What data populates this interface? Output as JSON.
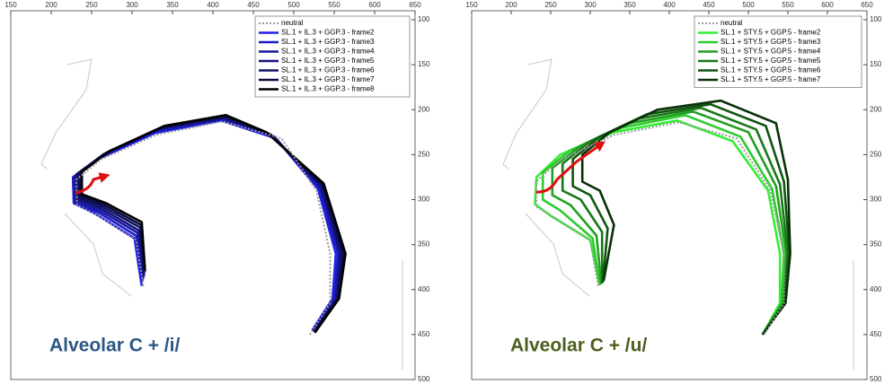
{
  "chart_data": [
    {
      "type": "line",
      "annotation": "Alveolar C + /i/",
      "annotation_color": "#2c5685",
      "xlim": [
        150,
        650
      ],
      "ylim": [
        100,
        500
      ],
      "y_inverted": true,
      "xticks": [
        150,
        200,
        250,
        300,
        350,
        400,
        450,
        500,
        550,
        600,
        650
      ],
      "yticks": [
        100,
        150,
        200,
        250,
        300,
        350,
        400,
        450,
        500
      ],
      "legend": "upper right",
      "series": [
        {
          "name": "neutral",
          "color": "#999999",
          "style": "dotted",
          "x": [
            314,
            305,
            258,
            232,
            231,
            262,
            330,
            412,
            485,
            528,
            545,
            545,
            520
          ],
          "y": [
            396,
            345,
            318,
            306,
            278,
            255,
            228,
            213,
            232,
            290,
            360,
            415,
            450
          ]
        },
        {
          "name": "SL.1 + IL.3 + GGP.3 - frame2",
          "color": "#2020e8",
          "x": [
            312,
            303,
            255,
            228,
            227,
            260,
            328,
            410,
            478,
            530,
            552,
            548,
            523
          ],
          "y": [
            396,
            343,
            316,
            304,
            276,
            254,
            226,
            212,
            232,
            288,
            360,
            410,
            445
          ]
        },
        {
          "name": "SL.1 + IL.3 + GGP.3 - frame3",
          "color": "#1c1cc4",
          "x": [
            313,
            305,
            258,
            228,
            227,
            262,
            330,
            412,
            476,
            532,
            555,
            550,
            524
          ],
          "y": [
            392,
            340,
            314,
            304,
            275,
            252,
            224,
            211,
            230,
            287,
            360,
            410,
            446
          ]
        },
        {
          "name": "SL.1 + IL.3 + GGP.3 - frame4",
          "color": "#1818a0",
          "x": [
            314,
            307,
            260,
            230,
            229,
            264,
            332,
            412,
            474,
            533,
            556,
            552,
            524
          ],
          "y": [
            388,
            337,
            312,
            302,
            274,
            250,
            222,
            210,
            229,
            286,
            360,
            410,
            446
          ]
        },
        {
          "name": "SL.1 + IL.3 + GGP.3 - frame5",
          "color": "#141480",
          "x": [
            315,
            308,
            262,
            232,
            231,
            266,
            334,
            414,
            472,
            534,
            558,
            553,
            525
          ],
          "y": [
            385,
            334,
            310,
            300,
            272,
            249,
            221,
            209,
            228,
            285,
            360,
            410,
            447
          ]
        },
        {
          "name": "SL.1 + IL.3 + GGP.3 - frame6",
          "color": "#101060",
          "x": [
            315,
            310,
            264,
            234,
            233,
            268,
            336,
            414,
            470,
            535,
            560,
            554,
            525
          ],
          "y": [
            382,
            331,
            308,
            298,
            271,
            248,
            220,
            208,
            227,
            284,
            360,
            410,
            447
          ]
        },
        {
          "name": "SL.1 + IL.3 + GGP.3 - frame7",
          "color": "#0b0b40",
          "x": [
            316,
            311,
            266,
            236,
            236,
            270,
            338,
            415,
            468,
            536,
            562,
            555,
            526
          ],
          "y": [
            380,
            328,
            306,
            296,
            270,
            247,
            219,
            207,
            226,
            283,
            360,
            410,
            448
          ]
        },
        {
          "name": "SL.1 + IL.3 + GGP.3 - frame8",
          "color": "#000000",
          "x": [
            316,
            312,
            268,
            238,
            238,
            272,
            340,
            416,
            466,
            537,
            564,
            556,
            526
          ],
          "y": [
            378,
            325,
            304,
            294,
            269,
            246,
            218,
            206,
            225,
            282,
            360,
            410,
            448
          ]
        }
      ]
    },
    {
      "type": "line",
      "annotation": "Alveolar C + /u/",
      "annotation_color": "#4b5f1e",
      "xlim": [
        150,
        650
      ],
      "ylim": [
        100,
        500
      ],
      "y_inverted": true,
      "xticks": [
        150,
        200,
        250,
        300,
        350,
        400,
        450,
        500,
        550,
        600,
        650
      ],
      "yticks": [
        100,
        150,
        200,
        250,
        300,
        350,
        400,
        450,
        500
      ],
      "legend": "upper right",
      "series": [
        {
          "name": "neutral",
          "color": "#999999",
          "style": "dotted",
          "x": [
            310,
            300,
            255,
            232,
            231,
            262,
            330,
            412,
            485,
            528,
            545,
            545,
            520
          ],
          "y": [
            396,
            345,
            320,
            308,
            280,
            256,
            228,
            214,
            232,
            290,
            360,
            415,
            450
          ]
        },
        {
          "name": "SL.1 + STY.5 + GGP.5 - frame2",
          "color": "#33ee33",
          "x": [
            312,
            300,
            250,
            230,
            232,
            262,
            330,
            410,
            480,
            525,
            540,
            540,
            518
          ],
          "y": [
            395,
            345,
            318,
            305,
            275,
            250,
            225,
            212,
            235,
            290,
            360,
            415,
            450
          ]
        },
        {
          "name": "SL.1 + STY.5 + GGP.5 - frame3",
          "color": "#2ccc2c",
          "x": [
            312,
            303,
            262,
            240,
            240,
            275,
            340,
            420,
            490,
            530,
            545,
            542,
            518
          ],
          "y": [
            395,
            343,
            312,
            300,
            270,
            245,
            220,
            206,
            230,
            288,
            360,
            415,
            450
          ]
        },
        {
          "name": "SL.1 + STY.5 + GGP.5 - frame4",
          "color": "#20a020",
          "x": [
            314,
            308,
            275,
            252,
            252,
            288,
            350,
            430,
            500,
            535,
            548,
            544,
            518
          ],
          "y": [
            394,
            340,
            306,
            295,
            265,
            240,
            215,
            202,
            225,
            285,
            360,
            415,
            450
          ]
        },
        {
          "name": "SL.1 + STY.5 + GGP.5 - frame5",
          "color": "#187818",
          "x": [
            315,
            315,
            288,
            265,
            265,
            300,
            360,
            440,
            510,
            540,
            550,
            545,
            518
          ],
          "y": [
            393,
            336,
            300,
            290,
            260,
            235,
            210,
            198,
            222,
            283,
            360,
            415,
            450
          ]
        },
        {
          "name": "SL.1 + STY.5 + GGP.5 - frame6",
          "color": "#0f550f",
          "x": [
            316,
            322,
            300,
            278,
            278,
            312,
            372,
            452,
            522,
            545,
            552,
            546,
            518
          ],
          "y": [
            392,
            332,
            295,
            285,
            255,
            230,
            205,
            194,
            218,
            280,
            360,
            415,
            450
          ]
        },
        {
          "name": "SL.1 + STY.5 + GGP.5 - frame7",
          "color": "#083008",
          "x": [
            317,
            330,
            312,
            290,
            290,
            325,
            385,
            465,
            535,
            550,
            553,
            547,
            518
          ],
          "y": [
            390,
            328,
            290,
            280,
            250,
            225,
            200,
            190,
            215,
            278,
            360,
            415,
            450
          ]
        }
      ]
    }
  ]
}
